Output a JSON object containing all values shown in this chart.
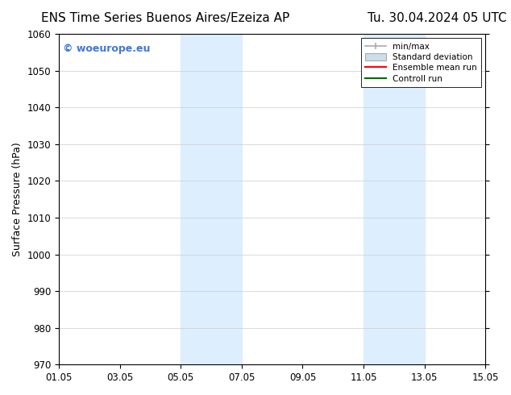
{
  "title_left": "ENS Time Series Buenos Aires/Ezeiza AP",
  "title_right": "Tu. 30.04.2024 05 UTC",
  "ylabel": "Surface Pressure (hPa)",
  "ylim": [
    970,
    1060
  ],
  "yticks": [
    970,
    980,
    990,
    1000,
    1010,
    1020,
    1030,
    1040,
    1050,
    1060
  ],
  "x_start": "2024-05-01",
  "x_end": "2024-05-15",
  "xtick_labels": [
    "01.05",
    "03.05",
    "05.05",
    "07.05",
    "09.05",
    "11.05",
    "13.05",
    "15.05"
  ],
  "xtick_positions_days": [
    0,
    2,
    4,
    6,
    8,
    10,
    12,
    14
  ],
  "shaded_bands": [
    {
      "x_start_days": 4,
      "x_end_days": 6
    },
    {
      "x_start_days": 10,
      "x_end_days": 12
    }
  ],
  "shaded_color": "#ddeeff",
  "watermark_text": "© woeurope.eu",
  "watermark_color": "#4477cc",
  "legend_items": [
    {
      "label": "min/max",
      "color": "#aaaaaa",
      "style": "line_with_cap"
    },
    {
      "label": "Standard deviation",
      "color": "#ccddee",
      "style": "filled_box"
    },
    {
      "label": "Ensemble mean run",
      "color": "#ff0000",
      "style": "line"
    },
    {
      "label": "Controll run",
      "color": "#006600",
      "style": "line"
    }
  ],
  "bg_color": "#ffffff",
  "title_fontsize": 11,
  "axis_fontsize": 9,
  "tick_fontsize": 8.5
}
